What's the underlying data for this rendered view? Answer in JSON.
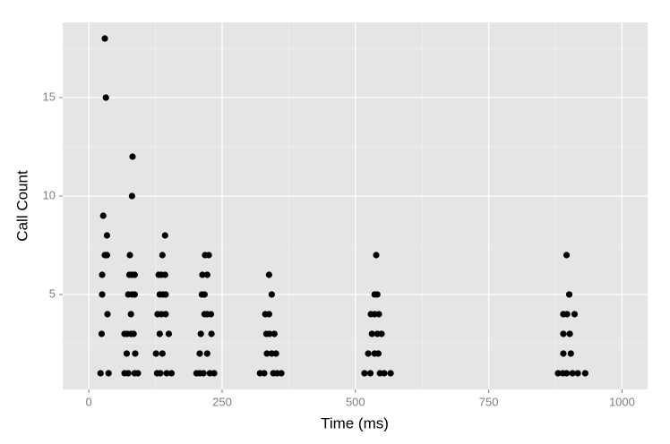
{
  "chart_data": {
    "type": "scatter",
    "x_label": "Time (ms)",
    "y_label": "Call Count",
    "x": [
      30,
      32,
      27,
      34,
      30,
      34,
      25,
      25,
      35,
      24,
      22,
      37,
      82,
      81,
      77,
      76,
      81,
      86,
      74,
      81,
      86,
      79,
      67,
      72,
      79,
      84,
      71,
      87,
      67,
      74,
      86,
      92,
      143,
      138,
      131,
      136,
      143,
      133,
      139,
      144,
      129,
      136,
      144,
      133,
      150,
      126,
      138,
      128,
      134,
      146,
      155,
      218,
      225,
      213,
      222,
      212,
      217,
      217,
      222,
      229,
      210,
      230,
      208,
      222,
      202,
      208,
      215,
      227,
      235,
      338,
      343,
      331,
      338,
      333,
      339,
      348,
      334,
      343,
      351,
      321,
      329,
      346,
      353,
      361,
      539,
      536,
      541,
      529,
      536,
      544,
      531,
      541,
      549,
      524,
      536,
      543,
      517,
      528,
      546,
      554,
      566,
      896,
      901,
      890,
      897,
      911,
      890,
      902,
      890,
      904,
      880,
      889,
      896,
      907,
      917,
      931
    ],
    "values": [
      18,
      15,
      9,
      8,
      7,
      7,
      6,
      5,
      4,
      3,
      1,
      1,
      12,
      10,
      7,
      6,
      6,
      6,
      5,
      5,
      5,
      4,
      3,
      3,
      3,
      3,
      2,
      2,
      1,
      1,
      1,
      1,
      8,
      7,
      6,
      6,
      6,
      5,
      5,
      5,
      4,
      4,
      4,
      3,
      3,
      2,
      2,
      1,
      1,
      1,
      1,
      7,
      7,
      6,
      6,
      5,
      5,
      4,
      4,
      4,
      3,
      3,
      2,
      2,
      1,
      1,
      1,
      1,
      1,
      6,
      5,
      4,
      4,
      3,
      3,
      3,
      2,
      2,
      2,
      1,
      1,
      1,
      1,
      1,
      7,
      5,
      5,
      4,
      4,
      4,
      3,
      3,
      3,
      2,
      2,
      2,
      1,
      1,
      1,
      1,
      1,
      7,
      5,
      4,
      4,
      4,
      3,
      3,
      2,
      2,
      1,
      1,
      1,
      1,
      1,
      1
    ],
    "color": "#000000",
    "xlim": [
      -49,
      1048
    ],
    "ylim": [
      0.18,
      18.82
    ],
    "xticks": [
      0,
      250,
      500,
      750,
      1000
    ],
    "yticks": [
      5,
      10,
      15
    ],
    "grid": true,
    "panel_color": "#e5e5e5"
  }
}
